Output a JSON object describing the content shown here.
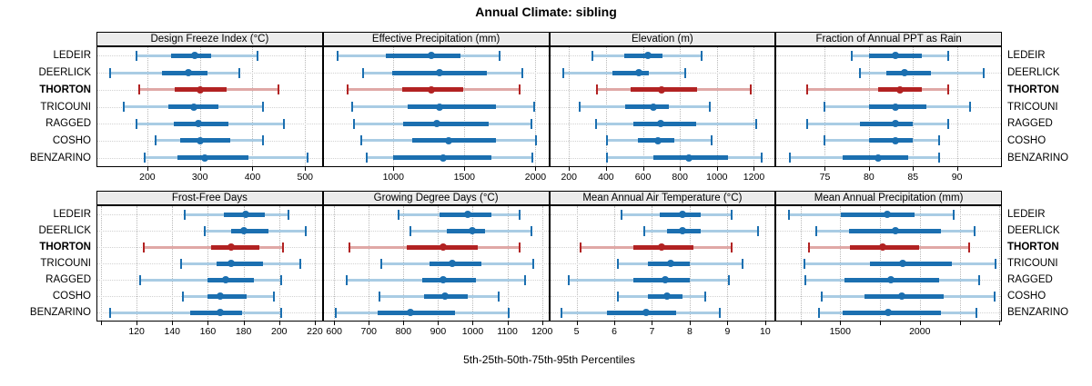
{
  "title": "Annual Climate: sibling",
  "xlabel": "5th-25th-50th-75th-95th Percentiles",
  "colors": {
    "normal_dark": "#1b6fb0",
    "normal_light": "#a9cce4",
    "highlight_dark": "#b22222",
    "highlight_light": "#e0a8a6",
    "strip_bg": "#ececec",
    "vgrid": "#b9b9b9",
    "hgrid": "#d2d2d2"
  },
  "chart_data": {
    "type": "scatter",
    "subtype": "trellis-percentile-dotplot",
    "title": "Annual Climate: sibling",
    "xlabel": "5th-25th-50th-75th-95th Percentiles",
    "percentiles": [
      5,
      25,
      50,
      75,
      95
    ],
    "layout": {
      "rows": 2,
      "cols": 4,
      "grid": true,
      "y_labels_both_sides": true
    },
    "categories": [
      "LEDEIR",
      "DEERLICK",
      "THORTON",
      "TRICOUNI",
      "RAGGED",
      "COSHO",
      "BENZARINO"
    ],
    "highlight": "THORTON",
    "panels": [
      {
        "title": "Design Freeze Index (°C)",
        "row": 0,
        "col": 0,
        "xlim": [
          105,
          532
        ],
        "ticks": [
          200,
          300,
          400,
          500
        ],
        "tick_labels": [
          "200",
          "300",
          "400",
          "500"
        ],
        "values": {
          "LEDEIR": [
            180,
            245,
            290,
            322,
            410
          ],
          "DEERLICK": [
            130,
            228,
            278,
            314,
            375
          ],
          "THORTON": [
            185,
            252,
            300,
            350,
            450
          ],
          "TRICOUNI": [
            155,
            240,
            288,
            335,
            420
          ],
          "RAGGED": [
            180,
            250,
            297,
            354,
            460
          ],
          "COSHO": [
            215,
            262,
            301,
            357,
            420
          ],
          "BENZARINO": [
            195,
            258,
            310,
            393,
            505
          ]
        }
      },
      {
        "title": "Effective Precipitation (mm)",
        "row": 0,
        "col": 1,
        "xlim": [
          510,
          2090
        ],
        "ticks": [
          1000,
          1500,
          2000
        ],
        "tick_labels": [
          "1000",
          "1500",
          "2000"
        ],
        "values": {
          "LEDEIR": [
            605,
            945,
            1265,
            1475,
            1750
          ],
          "DEERLICK": [
            785,
            995,
            1325,
            1655,
            1910
          ],
          "THORTON": [
            680,
            1060,
            1270,
            1490,
            1890
          ],
          "TRICOUNI": [
            710,
            1100,
            1325,
            1720,
            1990
          ],
          "RAGGED": [
            720,
            1070,
            1305,
            1670,
            1970
          ],
          "COSHO": [
            775,
            1130,
            1390,
            1720,
            2005
          ],
          "BENZARINO": [
            810,
            1000,
            1350,
            1690,
            1975
          ]
        }
      },
      {
        "title": "Elevation (m)",
        "row": 0,
        "col": 2,
        "xlim": [
          98,
          1312
        ],
        "ticks": [
          200,
          400,
          600,
          800,
          1000,
          1200
        ],
        "tick_labels": [
          "200",
          "400",
          "600",
          "800",
          "1000",
          "1200"
        ],
        "values": {
          "LEDEIR": [
            325,
            500,
            625,
            705,
            915
          ],
          "DEERLICK": [
            170,
            435,
            580,
            633,
            830
          ],
          "THORTON": [
            350,
            535,
            700,
            895,
            1185
          ],
          "TRICOUNI": [
            260,
            505,
            655,
            740,
            960
          ],
          "RAGGED": [
            345,
            550,
            695,
            890,
            1210
          ],
          "COSHO": [
            405,
            575,
            680,
            770,
            970
          ],
          "BENZARINO": [
            405,
            655,
            850,
            1060,
            1240
          ]
        }
      },
      {
        "title": "Fraction of Annual PPT as Rain",
        "row": 0,
        "col": 3,
        "xlim": [
          69.5,
          95
        ],
        "ticks": [
          75,
          80,
          85,
          90
        ],
        "tick_labels": [
          "75",
          "80",
          "85",
          "90"
        ],
        "values": {
          "LEDEIR": [
            78,
            80,
            83,
            86,
            89
          ],
          "DEERLICK": [
            79,
            82,
            84,
            87,
            93
          ],
          "THORTON": [
            73,
            81,
            83.5,
            86,
            89
          ],
          "TRICOUNI": [
            75,
            80,
            83,
            86.5,
            91.5
          ],
          "RAGGED": [
            73,
            79,
            83,
            85,
            89
          ],
          "COSHO": [
            75,
            80,
            83,
            85,
            88
          ],
          "BENZARINO": [
            71,
            77,
            81,
            84.5,
            88
          ]
        }
      },
      {
        "title": "Frost-Free Days",
        "row": 1,
        "col": 0,
        "xlim": [
          98,
          224
        ],
        "ticks": [
          100,
          120,
          140,
          160,
          180,
          200,
          220
        ],
        "tick_labels": [
          "",
          "120",
          "140",
          "160",
          "180",
          "200",
          "220"
        ],
        "values": {
          "LEDEIR": [
            147,
            169,
            181,
            192,
            205
          ],
          "DEERLICK": [
            158,
            173,
            180,
            194,
            215
          ],
          "THORTON": [
            124,
            162,
            173,
            189,
            202
          ],
          "TRICOUNI": [
            145,
            165,
            173,
            191,
            212
          ],
          "RAGGED": [
            122,
            160,
            170,
            186,
            201
          ],
          "COSHO": [
            146,
            160,
            167,
            182,
            197
          ],
          "BENZARINO": [
            105,
            150,
            167,
            179,
            201
          ]
        }
      },
      {
        "title": "Growing Degree Days (°C)",
        "row": 1,
        "col": 1,
        "xlim": [
          570,
          1218
        ],
        "ticks": [
          600,
          700,
          800,
          900,
          1000,
          1100,
          1200
        ],
        "tick_labels": [
          "600",
          "700",
          "800",
          "900",
          "1000",
          "1100",
          "1200"
        ],
        "values": {
          "LEDEIR": [
            785,
            905,
            985,
            1055,
            1135
          ],
          "DEERLICK": [
            820,
            925,
            1000,
            1035,
            1170
          ],
          "THORTON": [
            645,
            810,
            915,
            1015,
            1135
          ],
          "TRICOUNI": [
            735,
            875,
            940,
            1025,
            1175
          ],
          "RAGGED": [
            635,
            855,
            915,
            1010,
            1150
          ],
          "COSHO": [
            730,
            860,
            920,
            985,
            1075
          ],
          "BENZARINO": [
            605,
            725,
            820,
            950,
            1105
          ]
        }
      },
      {
        "title": "Mean Annual Air Temperature (°C)",
        "row": 1,
        "col": 2,
        "xlim": [
          4.3,
          10.25
        ],
        "ticks": [
          5,
          6,
          7,
          8,
          9,
          10
        ],
        "tick_labels": [
          "5",
          "6",
          "7",
          "8",
          "9",
          "10"
        ],
        "values": {
          "LEDEIR": [
            6.2,
            7.2,
            7.8,
            8.3,
            9.1
          ],
          "DEERLICK": [
            6.8,
            7.4,
            7.8,
            8.3,
            9.8
          ],
          "THORTON": [
            5.1,
            6.5,
            7.25,
            8.1,
            9.1
          ],
          "TRICOUNI": [
            6.1,
            6.9,
            7.5,
            8.0,
            9.4
          ],
          "RAGGED": [
            4.8,
            6.5,
            7.35,
            8.0,
            9.05
          ],
          "COSHO": [
            6.1,
            6.9,
            7.4,
            7.8,
            8.4
          ],
          "BENZARINO": [
            4.6,
            5.8,
            6.85,
            7.65,
            8.8
          ]
        }
      },
      {
        "title": "Mean Annual Precipitation (mm)",
        "row": 1,
        "col": 3,
        "xlim": [
          1100,
          2510
        ],
        "ticks": [
          1250,
          1500,
          1750,
          2000,
          2250,
          2500
        ],
        "tick_labels": [
          "",
          "1500",
          "",
          "2000",
          "",
          ""
        ],
        "values": {
          "LEDEIR": [
            1180,
            1505,
            1795,
            1965,
            2215
          ],
          "DEERLICK": [
            1350,
            1555,
            1845,
            2130,
            2345
          ],
          "THORTON": [
            1305,
            1560,
            1765,
            1995,
            2310
          ],
          "TRICOUNI": [
            1275,
            1685,
            1895,
            2200,
            2475
          ],
          "RAGGED": [
            1280,
            1525,
            1820,
            2120,
            2375
          ],
          "COSHO": [
            1385,
            1650,
            1885,
            2150,
            2470
          ],
          "BENZARINO": [
            1365,
            1515,
            1800,
            2130,
            2355
          ]
        }
      }
    ]
  }
}
